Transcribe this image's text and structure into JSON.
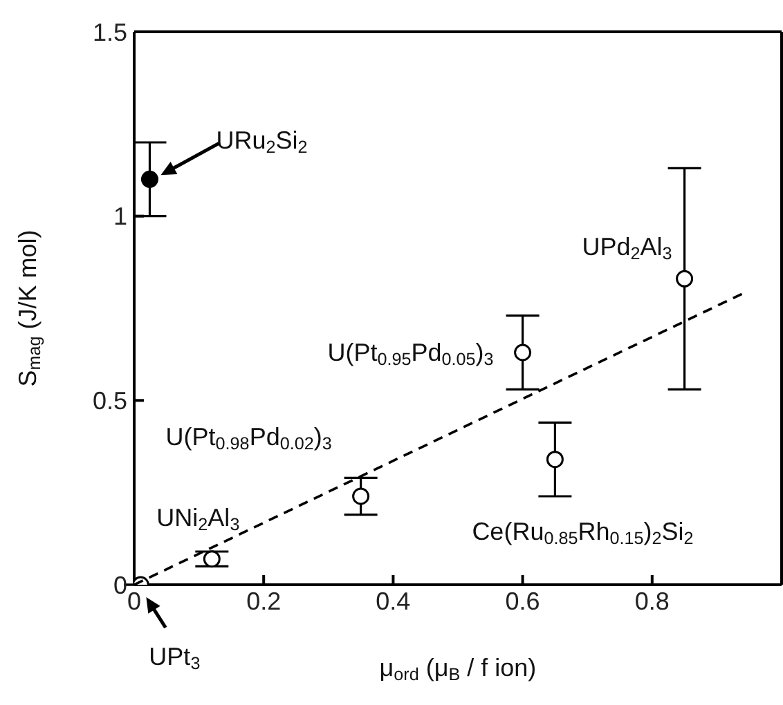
{
  "chart_data": {
    "type": "scatter",
    "xlabel": "μ$_{ord}$ (μ$_{B}$ / f ion)",
    "ylabel": "S$_{mag}$ (J/K mol)",
    "xlim": [
      0,
      1
    ],
    "xticks": [
      0,
      0.2,
      0.4,
      0.6,
      0.8
    ],
    "ylim": [
      0,
      1.5
    ],
    "yticks": [
      0,
      0.5,
      1,
      1.5
    ],
    "marker": "circle",
    "series": [
      {
        "color": "#000000",
        "x": [
          0.024
        ],
        "values": [
          1.1
        ],
        "errors": [
          0.1
        ]
      },
      {
        "color": "#ffffff",
        "x": [
          0.01,
          0.12,
          0.35,
          0.6,
          0.65,
          0.85
        ],
        "values": [
          0,
          0.07,
          0.24,
          0.63,
          0.34,
          0.83
        ],
        "errors": [
          null,
          0.02,
          0.05,
          0.1,
          0.1,
          0.3
        ]
      },
      {
        "type": "line",
        "color": "#000000",
        "x": [
          0,
          0.94
        ],
        "values": [
          0,
          0.79
        ],
        "line_style": "dashed",
        "marker": "none"
      }
    ],
    "annotations": [
      {
        "text": "URu$_{2}$Si$_{2}$",
        "x": 0.024,
        "y": 1.1
      },
      {
        "text": "UPt$_{3}$",
        "x": 0.01,
        "y": 0
      },
      {
        "text": "UNi$_{2}$Al$_{3}$",
        "x": 0.12,
        "y": 0.07
      },
      {
        "text": "U(Pt$_{0.98}$Pd$_{0.02}$)$_{3}$",
        "x": 0.35,
        "y": 0.24
      },
      {
        "text": "U(Pt$_{0.95}$Pd$_{0.05}$)$_{3}$",
        "x": 0.6,
        "y": 0.63
      },
      {
        "text": "Ce(Ru$_{0.85}$Rh$_{0.15}$)$_{2}$Si$_{2}$",
        "x": 0.65,
        "y": 0.34
      },
      {
        "text": "UPd$_{2}$Al$_{3}$",
        "x": 0.85,
        "y": 0.83
      }
    ]
  }
}
